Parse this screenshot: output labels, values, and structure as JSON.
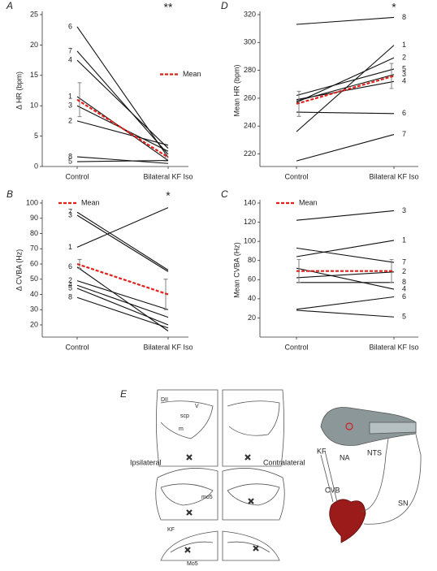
{
  "chart_data": [
    {
      "type": "line",
      "panel": "A",
      "ylabel": "Δ HR (bpm)",
      "categories": [
        "Control",
        "Bilateral KF Iso"
      ],
      "ylim": [
        0,
        25
      ],
      "yticks": [
        0,
        5,
        10,
        15,
        20,
        25
      ],
      "annotation": "**",
      "label_side": "left",
      "legend": "right",
      "series": [
        {
          "name": "6",
          "values": [
            23,
            1.5
          ]
        },
        {
          "name": "7",
          "values": [
            19,
            2
          ]
        },
        {
          "name": "4",
          "values": [
            17.5,
            3
          ]
        },
        {
          "name": "1",
          "values": [
            11.5,
            1
          ]
        },
        {
          "name": "3",
          "values": [
            10,
            2.5
          ]
        },
        {
          "name": "2",
          "values": [
            7.5,
            3.5
          ]
        },
        {
          "name": "8",
          "values": [
            1.6,
            0.5
          ]
        },
        {
          "name": "5",
          "values": [
            0.8,
            1
          ]
        }
      ],
      "mean": {
        "name": "Mean",
        "color": "#e0201b",
        "values": [
          11,
          1.5
        ],
        "errors": [
          2.8,
          0.6
        ]
      }
    },
    {
      "type": "line",
      "panel": "D",
      "ylabel": "Mean HR (bpm)",
      "categories": [
        "Control",
        "Bilateral KF Iso"
      ],
      "ylim": [
        211,
        320
      ],
      "yticks": [
        220,
        240,
        260,
        280,
        300,
        320
      ],
      "annotation": "*",
      "label_side": "right",
      "series": [
        {
          "name": "8",
          "values": [
            313,
            318
          ]
        },
        {
          "name": "1",
          "values": [
            236,
            298
          ]
        },
        {
          "name": "2",
          "values": [
            257,
            289
          ]
        },
        {
          "name": "5",
          "values": [
            262,
            281
          ]
        },
        {
          "name": "3",
          "values": [
            258,
            277
          ]
        },
        {
          "name": "4",
          "values": [
            259,
            272
          ]
        },
        {
          "name": "6",
          "values": [
            250,
            249
          ]
        },
        {
          "name": "7",
          "values": [
            215,
            234
          ]
        }
      ],
      "mean": {
        "name": "Mean",
        "color": "#e0201b",
        "values": [
          256,
          276
        ],
        "errors": [
          9,
          9
        ]
      }
    },
    {
      "type": "line",
      "panel": "B",
      "ylabel": "Δ CVBA (Hz)",
      "categories": [
        "Control",
        "Bilateral KF Iso"
      ],
      "ylim": [
        12,
        100
      ],
      "yticks": [
        20,
        30,
        40,
        50,
        60,
        70,
        80,
        90,
        100
      ],
      "annotation": "*",
      "label_side": "left",
      "legend": "upper left",
      "series": [
        {
          "name": "7",
          "values": [
            94,
            56
          ]
        },
        {
          "name": "3",
          "values": [
            92,
            55
          ]
        },
        {
          "name": "1",
          "values": [
            71,
            97
          ]
        },
        {
          "name": "6",
          "values": [
            58,
            16
          ]
        },
        {
          "name": "2",
          "values": [
            49,
            30
          ]
        },
        {
          "name": "4",
          "values": [
            46,
            25
          ]
        },
        {
          "name": "5",
          "values": [
            44,
            20
          ]
        },
        {
          "name": "8",
          "values": [
            38,
            18
          ]
        }
      ],
      "mean": {
        "name": "Mean",
        "color": "#e0201b",
        "values": [
          60,
          40
        ],
        "errors": [
          3,
          10
        ]
      }
    },
    {
      "type": "line",
      "panel": "C",
      "ylabel": "Mean CVBA (Hz)",
      "categories": [
        "Control",
        "Bilateral KF Iso"
      ],
      "ylim": [
        0,
        140
      ],
      "yticks": [
        20,
        40,
        60,
        80,
        100,
        120,
        140
      ],
      "label_side": "right",
      "legend": "upper left",
      "series": [
        {
          "name": "3",
          "values": [
            122,
            132
          ]
        },
        {
          "name": "1",
          "values": [
            84,
            101
          ]
        },
        {
          "name": "7",
          "values": [
            93,
            78
          ]
        },
        {
          "name": "2",
          "values": [
            62,
            68
          ]
        },
        {
          "name": "8",
          "values": [
            57,
            57
          ]
        },
        {
          "name": "4",
          "values": [
            72,
            50
          ]
        },
        {
          "name": "6",
          "values": [
            29,
            42
          ]
        },
        {
          "name": "5",
          "values": [
            28,
            21
          ]
        }
      ],
      "mean": {
        "name": "Mean",
        "color": "#e0201b",
        "values": [
          69,
          69
        ],
        "errors": [
          12,
          12
        ]
      }
    }
  ],
  "diagram": {
    "label": "E",
    "ipsilateral": "Ipsilateral",
    "contralateral": "Contralateral",
    "slice_labels": [
      "DII",
      "scp",
      "m",
      "V",
      "mo5",
      "KF",
      "Mo5"
    ],
    "brain_labels": [
      "KF",
      "NA",
      "NTS",
      "CVB",
      "SN"
    ]
  }
}
